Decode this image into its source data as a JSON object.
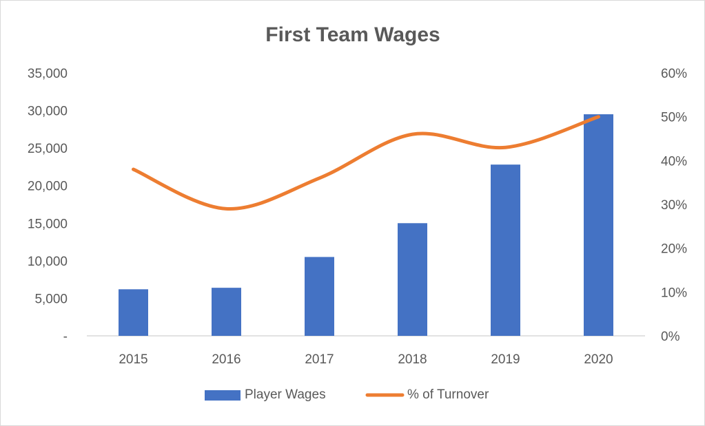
{
  "chart_data": {
    "type": "bar",
    "title": "First Team Wages",
    "categories": [
      "2015",
      "2016",
      "2017",
      "2018",
      "2019",
      "2020"
    ],
    "series": [
      {
        "name": "Player Wages",
        "type": "bar",
        "axis": "left",
        "color": "#4472c4",
        "values": [
          6200,
          6400,
          10500,
          15000,
          22800,
          29500
        ]
      },
      {
        "name": "% of Turnover",
        "type": "line",
        "axis": "right",
        "color": "#ed7d31",
        "smooth": true,
        "values": [
          0.38,
          0.29,
          0.36,
          0.46,
          0.43,
          0.5
        ]
      }
    ],
    "y_left": {
      "min": 0,
      "max": 35000,
      "ticks": [
        0,
        5000,
        10000,
        15000,
        20000,
        25000,
        30000,
        35000
      ],
      "tick_labels": [
        "-",
        "5,000",
        "10,000",
        "15,000",
        "20,000",
        "25,000",
        "30,000",
        "35,000"
      ]
    },
    "y_right": {
      "min": 0,
      "max": 0.6,
      "ticks": [
        0,
        0.1,
        0.2,
        0.3,
        0.4,
        0.5,
        0.6
      ],
      "tick_labels": [
        "0%",
        "10%",
        "20%",
        "30%",
        "40%",
        "50%",
        "60%"
      ]
    },
    "grid": false,
    "legend_position": "bottom"
  }
}
